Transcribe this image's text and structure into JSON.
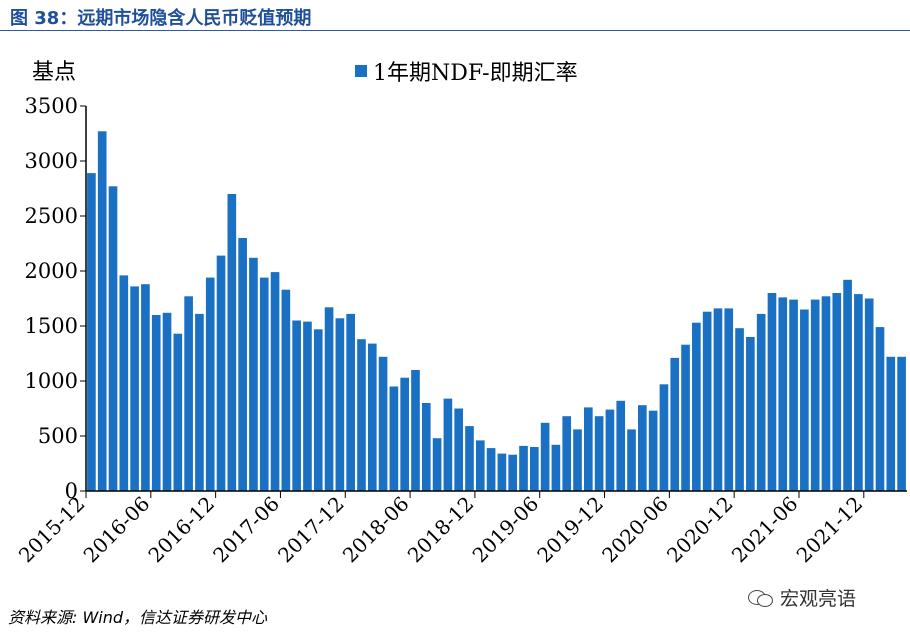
{
  "figure": {
    "title": "图 38：远期市场隐含人民币贬值预期",
    "source": "资料来源: Wind，信达证券研发中心",
    "brand": "宏观亮语",
    "brand_icon": "wechat-icon"
  },
  "colors": {
    "bar": "#1a70c2",
    "title": "#1f4e9a",
    "axis": "#000000"
  },
  "chart_data": {
    "type": "bar",
    "ylabel": "基点",
    "ylim": [
      0,
      3500
    ],
    "yticks": [
      0,
      500,
      1000,
      1500,
      2000,
      2500,
      3000,
      3500
    ],
    "grid": false,
    "legend_position": "top",
    "x_tick_labels": [
      "2015-12",
      "2016-06",
      "2016-12",
      "2017-06",
      "2017-12",
      "2018-06",
      "2018-12",
      "2019-06",
      "2019-12",
      "2020-06",
      "2020-12",
      "2021-06",
      "2021-12"
    ],
    "x_tick_every": 6,
    "series": [
      {
        "name": "1年期NDF-即期汇率",
        "values": [
          2890,
          3270,
          2770,
          1960,
          1860,
          1880,
          1600,
          1620,
          1430,
          1770,
          1610,
          1940,
          2140,
          2700,
          2300,
          2120,
          1940,
          1990,
          1830,
          1550,
          1540,
          1470,
          1670,
          1570,
          1610,
          1380,
          1340,
          1220,
          950,
          1030,
          1100,
          800,
          480,
          840,
          750,
          590,
          460,
          390,
          340,
          330,
          410,
          400,
          620,
          420,
          680,
          560,
          760,
          680,
          740,
          820,
          560,
          780,
          730,
          970,
          1210,
          1330,
          1530,
          1630,
          1660,
          1660,
          1480,
          1400,
          1610,
          1800,
          1760,
          1740,
          1650,
          1740,
          1770,
          1800,
          1920,
          1790,
          1750,
          1490,
          1220,
          1220
        ]
      }
    ]
  }
}
